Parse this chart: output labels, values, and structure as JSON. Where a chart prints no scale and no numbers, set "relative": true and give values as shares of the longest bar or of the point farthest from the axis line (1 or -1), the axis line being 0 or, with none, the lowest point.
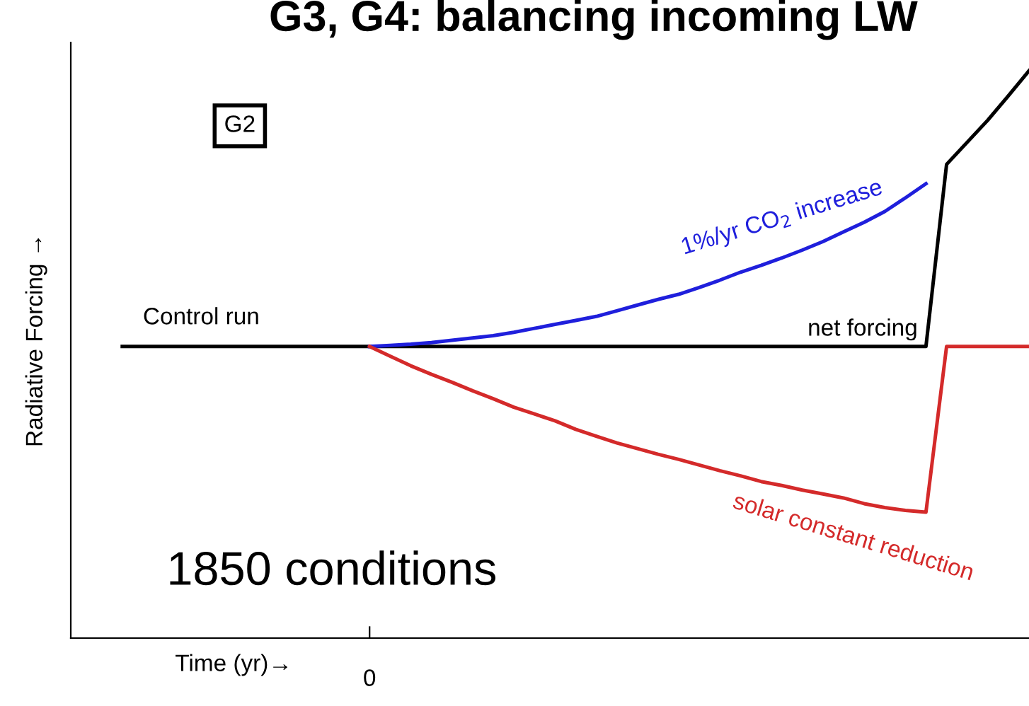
{
  "chart_data": {
    "type": "line",
    "title": "G3, G4: balancing incoming LW",
    "ylabel": "Radiative Forcing →",
    "relative": true,
    "legend": false,
    "marker": "none",
    "line_style": "solid",
    "categories": [
      null,
      null,
      null,
      null,
      null,
      null,
      null,
      null,
      null,
      null,
      null,
      null,
      null,
      null,
      null,
      null,
      null,
      null,
      null,
      null,
      null,
      null,
      null,
      null,
      null,
      null,
      null,
      null,
      null,
      null,
      null,
      null,
      null,
      null,
      null,
      null,
      null,
      null,
      null,
      null,
      null,
      null,
      null,
      null,
      null
    ],
    "annotations": [
      "G2",
      "1850 conditions",
      "0",
      "net forcing",
      "Time (yr)→"
    ],
    "series": [
      {
        "name": "Control run",
        "color": "#000000",
        "values": [
          0.514,
          0.514,
          0.514,
          0.514,
          0.514,
          0.514,
          0.514,
          0.514,
          0.514,
          0.514,
          0.514,
          0.514,
          0.514,
          0.514,
          0.514,
          0.514,
          0.514,
          0.514,
          0.514,
          0.514,
          0.514,
          0.514,
          0.514,
          0.514,
          0.514,
          0.514,
          0.514,
          0.514,
          0.514,
          0.514,
          0.514,
          0.514,
          0.514,
          0.514,
          0.514,
          0.514,
          0.514,
          0.514,
          0.514,
          0.514,
          0.835,
          0.874,
          0.913,
          0.956,
          1
        ]
      },
      {
        "name": "1%/yr CO$_{2}$ increase",
        "color": "#1f1fdc",
        "values": [
          null,
          null,
          null,
          null,
          null,
          null,
          null,
          null,
          null,
          null,
          null,
          null,
          0.514,
          0.516,
          0.518,
          0.521,
          0.525,
          0.529,
          0.533,
          0.539,
          0.546,
          0.553,
          0.56,
          0.567,
          0.577,
          0.587,
          0.597,
          0.606,
          0.618,
          0.631,
          0.645,
          0.657,
          0.67,
          0.684,
          0.699,
          0.716,
          0.733,
          0.752,
          0.776,
          0.801,
          null,
          null,
          null,
          null,
          null
        ]
      },
      {
        "name": "solar constant reduction",
        "color": "#d42a2a",
        "values": [
          null,
          null,
          null,
          null,
          null,
          null,
          null,
          null,
          null,
          null,
          null,
          null,
          0.514,
          0.497,
          0.48,
          0.465,
          0.451,
          0.436,
          0.422,
          0.407,
          0.395,
          0.383,
          0.368,
          0.356,
          0.344,
          0.334,
          0.324,
          0.315,
          0.305,
          0.295,
          0.286,
          0.276,
          0.269,
          0.261,
          0.254,
          0.247,
          0.237,
          0.23,
          0.225,
          0.222,
          0.514,
          0.514,
          0.514,
          0.514,
          0.514
        ]
      }
    ]
  }
}
